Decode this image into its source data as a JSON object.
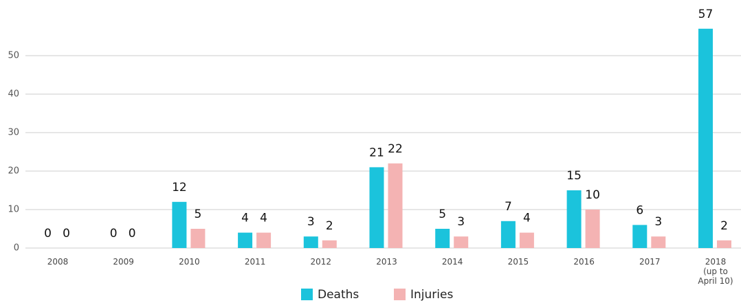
{
  "chart_data": {
    "type": "bar",
    "categories": [
      "2008",
      "2009",
      "2010",
      "2011",
      "2012",
      "2013",
      "2014",
      "2015",
      "2016",
      "2017",
      "2018\n(up to\nApril 10)"
    ],
    "series": [
      {
        "name": "Deaths",
        "color": "#1bc3dc",
        "values": [
          0,
          0,
          12,
          4,
          3,
          21,
          5,
          7,
          15,
          6,
          57
        ]
      },
      {
        "name": "Injuries",
        "color": "#f4b3b3",
        "values": [
          0,
          0,
          5,
          4,
          2,
          22,
          3,
          4,
          10,
          3,
          2
        ]
      }
    ],
    "ylim": [
      0,
      60
    ],
    "yticks": [
      0,
      10,
      20,
      30,
      40,
      50
    ],
    "grid": true,
    "legend": "bottom"
  }
}
